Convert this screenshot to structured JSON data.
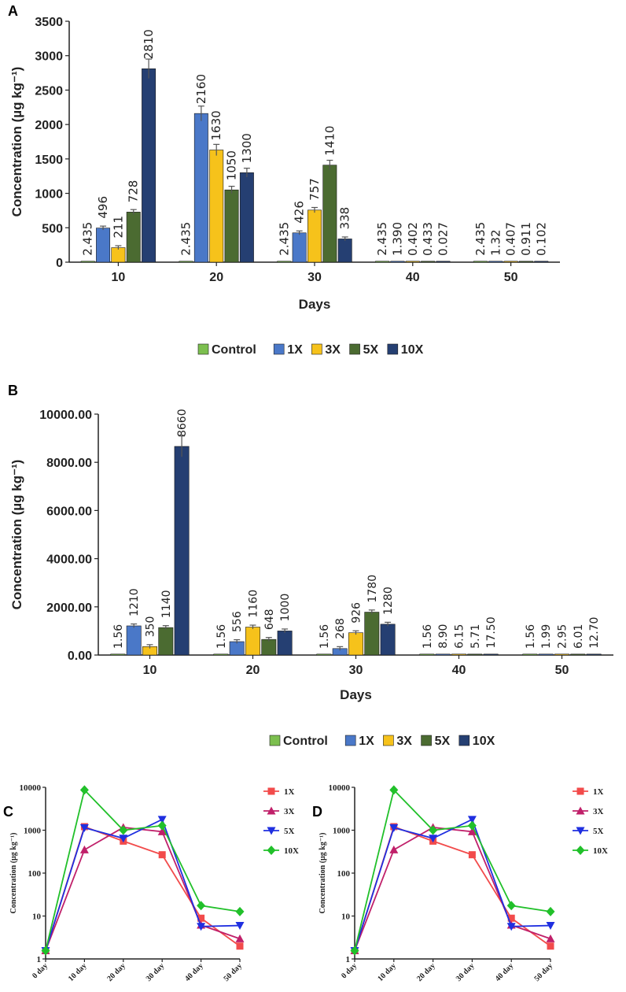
{
  "colors": {
    "control": "#7cbf4f",
    "1X": "#4a78c8",
    "3X": "#f6c21b",
    "5X": "#4b6b31",
    "10X": "#253f72",
    "line_1X": "#f24b4b",
    "line_3X": "#c0206a",
    "line_5X": "#1f2fe0",
    "line_10X": "#21c02a"
  },
  "chart_data": [
    {
      "panel": "A",
      "type": "bar",
      "title": "",
      "xlabel": "Days",
      "ylabel": "Concentration (µg kg⁻¹)",
      "ylim": [
        0,
        3500
      ],
      "yticks": [
        "0",
        "500",
        "1000",
        "1500",
        "2000",
        "2500",
        "3000",
        "3500"
      ],
      "ytick_values": [
        0,
        500,
        1000,
        1500,
        2000,
        2500,
        3000,
        3500
      ],
      "categories": [
        "10",
        "20",
        "30",
        "40",
        "50"
      ],
      "legend": [
        "Control",
        "1X",
        "3X",
        "5X",
        "10X"
      ],
      "series": [
        {
          "name": "Control",
          "values": [
            2.435,
            2.435,
            2.435,
            2.435,
            2.435
          ],
          "labels": [
            "2.435",
            "2.435",
            "2.435",
            "2.435",
            "2.435"
          ]
        },
        {
          "name": "1X",
          "values": [
            496,
            2160,
            426,
            1.39,
            1.32
          ],
          "labels": [
            "496",
            "2160",
            "426",
            "1.390",
            "1.32"
          ]
        },
        {
          "name": "3X",
          "values": [
            211,
            1630,
            757,
            0.402,
            0.407
          ],
          "labels": [
            "211",
            "1630",
            "757",
            "0.402",
            "0.407"
          ]
        },
        {
          "name": "5X",
          "values": [
            728,
            1050,
            1410,
            0.433,
            0.911
          ],
          "labels": [
            "728",
            "1050",
            "1410",
            "0.433",
            "0.911"
          ]
        },
        {
          "name": "10X",
          "values": [
            2810,
            1300,
            338,
            0.027,
            0.102
          ],
          "labels": [
            "2810",
            "1300",
            "338",
            "0.027",
            "0.102"
          ]
        }
      ]
    },
    {
      "panel": "B",
      "type": "bar",
      "title": "",
      "xlabel": "Days",
      "ylabel": "Concentration (µg kg⁻¹)",
      "ylim": [
        0,
        10000
      ],
      "yticks": [
        "0.00",
        "2000.00",
        "4000.00",
        "6000.00",
        "8000.00",
        "10000.00"
      ],
      "ytick_values": [
        0,
        2000,
        4000,
        6000,
        8000,
        10000
      ],
      "categories": [
        "10",
        "20",
        "30",
        "40",
        "50"
      ],
      "legend": [
        "Control",
        "1X",
        "3X",
        "5X",
        "10X"
      ],
      "series": [
        {
          "name": "Control",
          "values": [
            1.56,
            1.56,
            1.56,
            1.56,
            1.56
          ],
          "labels": [
            "1.56",
            "1.56",
            "1.56",
            "1.56",
            "1.56"
          ]
        },
        {
          "name": "1X",
          "values": [
            1210,
            556,
            268,
            8.9,
            1.99
          ],
          "labels": [
            "1210",
            "556",
            "268",
            "8.90",
            "1.99"
          ]
        },
        {
          "name": "3X",
          "values": [
            350,
            1160,
            926,
            6.15,
            2.95
          ],
          "labels": [
            "350",
            "1160",
            "926",
            "6.15",
            "2.95"
          ]
        },
        {
          "name": "5X",
          "values": [
            1140,
            648,
            1780,
            5.71,
            6.01
          ],
          "labels": [
            "1140",
            "648",
            "1780",
            "5.71",
            "6.01"
          ]
        },
        {
          "name": "10X",
          "values": [
            8660,
            1000,
            1280,
            17.5,
            12.7
          ],
          "labels": [
            "8660",
            "1000",
            "1280",
            "17.50",
            "12.70"
          ]
        }
      ]
    },
    {
      "panel": "C",
      "type": "line",
      "title": "",
      "xlabel": "",
      "ylabel": "Concentration (µg kg⁻¹)",
      "yscale": "log",
      "ylim": [
        1,
        10000
      ],
      "yticks": [
        "1",
        "10",
        "100",
        "1000",
        "10000"
      ],
      "ytick_values": [
        1,
        10,
        100,
        1000,
        10000
      ],
      "x": [
        "0 day",
        "10 day",
        "20 day",
        "30 day",
        "40 day",
        "50 day"
      ],
      "series": [
        {
          "name": "1X",
          "values": [
            1.56,
            1210,
            556,
            268,
            8.9,
            1.99
          ]
        },
        {
          "name": "3X",
          "values": [
            1.56,
            350,
            1160,
            926,
            6.15,
            2.95
          ]
        },
        {
          "name": "5X",
          "values": [
            1.56,
            1140,
            648,
            1780,
            5.71,
            6.01
          ]
        },
        {
          "name": "10X",
          "values": [
            1.56,
            8660,
            1000,
            1280,
            17.5,
            12.7
          ]
        }
      ]
    },
    {
      "panel": "D",
      "type": "line",
      "title": "",
      "xlabel": "",
      "ylabel": "Concentration (µg kg⁻¹)",
      "yscale": "log",
      "ylim": [
        1,
        10000
      ],
      "yticks": [
        "1",
        "10",
        "100",
        "1000",
        "10000"
      ],
      "ytick_values": [
        1,
        10,
        100,
        1000,
        10000
      ],
      "x": [
        "0 day",
        "10 day",
        "20 day",
        "30 day",
        "40 day",
        "50 day"
      ],
      "series": [
        {
          "name": "1X",
          "values": [
            1.56,
            1210,
            556,
            268,
            8.9,
            1.99
          ]
        },
        {
          "name": "3X",
          "values": [
            1.56,
            350,
            1160,
            926,
            6.15,
            2.95
          ]
        },
        {
          "name": "5X",
          "values": [
            1.56,
            1140,
            648,
            1780,
            5.71,
            6.01
          ]
        },
        {
          "name": "10X",
          "values": [
            1.56,
            8660,
            1000,
            1280,
            17.5,
            12.7
          ]
        }
      ]
    }
  ]
}
